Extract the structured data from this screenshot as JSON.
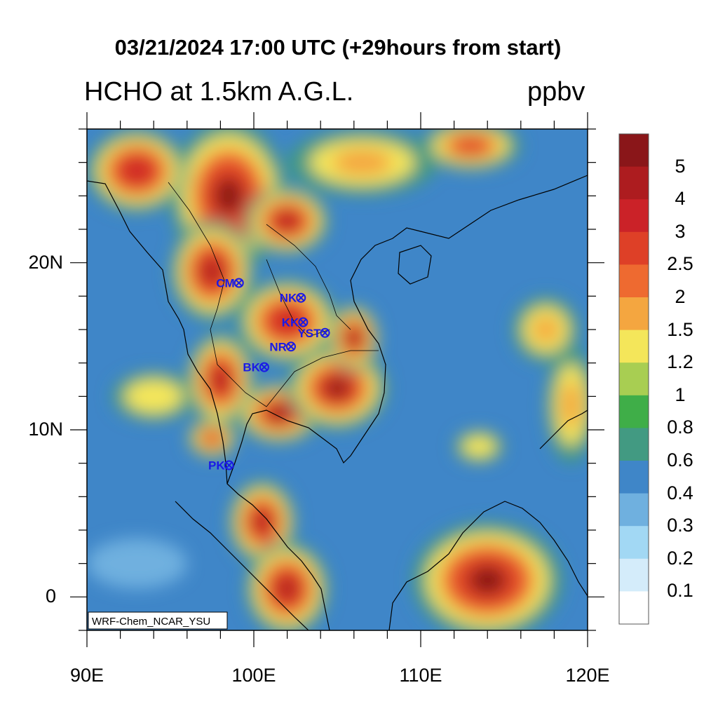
{
  "title": "03/21/2024 17:00 UTC (+29hours from start)",
  "subtitle": "HCHO at 1.5km A.G.L.",
  "units": "ppbv",
  "credit": "WRF-Chem_NCAR_YSU",
  "lon_labels": [
    "90E",
    "100E",
    "110E",
    "120E"
  ],
  "lat_labels": [
    "20N",
    "10N",
    "0"
  ],
  "colorbar": {
    "labels": [
      "5",
      "4",
      "3",
      "2.5",
      "2",
      "1.5",
      "1.2",
      "1",
      "0.8",
      "0.6",
      "0.4",
      "0.3",
      "0.2",
      "0.1"
    ],
    "colors": [
      "#ffffff",
      "#d4ecfa",
      "#a2d8f4",
      "#6fb0df",
      "#3f86c8",
      "#429a82",
      "#3fae48",
      "#a8ce52",
      "#f4e65a",
      "#f4a640",
      "#ee6a30",
      "#de4027",
      "#cb2228",
      "#ad1c1f",
      "#8a1619"
    ]
  },
  "stations": [
    {
      "label": "CM",
      "lon": 98.98,
      "lat": 18.79
    },
    {
      "label": "NK",
      "lon": 102.7,
      "lat": 17.9
    },
    {
      "label": "KK",
      "lon": 102.83,
      "lat": 16.44
    },
    {
      "label": "YST",
      "lon": 104.14,
      "lat": 15.8
    },
    {
      "label": "NR",
      "lon": 102.1,
      "lat": 14.98
    },
    {
      "label": "BK",
      "lon": 100.5,
      "lat": 13.75
    },
    {
      "label": "PK",
      "lon": 98.39,
      "lat": 7.88
    }
  ],
  "extent": {
    "lon": [
      90,
      120
    ],
    "lat": [
      -2,
      28
    ]
  },
  "hotspots": [
    {
      "lon": 98.5,
      "lat": 24.0,
      "rx": 3.5,
      "ry": 4.5,
      "v": 5.0
    },
    {
      "lon": 97.5,
      "lat": 19.5,
      "rx": 2.5,
      "ry": 3.0,
      "v": 4.3
    },
    {
      "lon": 102.0,
      "lat": 22.5,
      "rx": 2.5,
      "ry": 2.0,
      "v": 4.0
    },
    {
      "lon": 102.0,
      "lat": 16.5,
      "rx": 3.0,
      "ry": 2.5,
      "v": 3.2
    },
    {
      "lon": 98.0,
      "lat": 13.0,
      "rx": 2.0,
      "ry": 2.8,
      "v": 4.5
    },
    {
      "lon": 101.5,
      "lat": 11.0,
      "rx": 2.5,
      "ry": 1.8,
      "v": 5.0
    },
    {
      "lon": 105.0,
      "lat": 12.5,
      "rx": 3.0,
      "ry": 2.5,
      "v": 5.2
    },
    {
      "lon": 106.0,
      "lat": 15.5,
      "rx": 1.5,
      "ry": 2.0,
      "v": 5.0
    },
    {
      "lon": 100.5,
      "lat": 4.5,
      "rx": 2.0,
      "ry": 2.5,
      "v": 4.8
    },
    {
      "lon": 102.0,
      "lat": 0.5,
      "rx": 2.5,
      "ry": 2.8,
      "v": 4.5
    },
    {
      "lon": 114.0,
      "lat": 1.0,
      "rx": 4.5,
      "ry": 3.5,
      "v": 5.0
    },
    {
      "lon": 93.0,
      "lat": 25.5,
      "rx": 3.0,
      "ry": 2.5,
      "v": 3.0
    },
    {
      "lon": 106.5,
      "lat": 26.0,
      "rx": 4.5,
      "ry": 2.0,
      "v": 1.8
    },
    {
      "lon": 113.0,
      "lat": 27.0,
      "rx": 3.0,
      "ry": 1.5,
      "v": 2.5
    },
    {
      "lon": 117.5,
      "lat": 16.0,
      "rx": 2.0,
      "ry": 2.0,
      "v": 1.8
    },
    {
      "lon": 97.5,
      "lat": 9.5,
      "rx": 1.5,
      "ry": 1.2,
      "v": 2.5
    },
    {
      "lon": 94.0,
      "lat": 12.0,
      "rx": 2.5,
      "ry": 1.5,
      "v": 1.3
    },
    {
      "lon": 113.5,
      "lat": 9.0,
      "rx": 1.5,
      "ry": 1.0,
      "v": 1.4
    },
    {
      "lon": 119.0,
      "lat": 11.5,
      "rx": 1.5,
      "ry": 3.5,
      "v": 1.7
    },
    {
      "lon": 93.0,
      "lat": 2.0,
      "rx": 3.0,
      "ry": 1.5,
      "v": 0.3
    }
  ]
}
